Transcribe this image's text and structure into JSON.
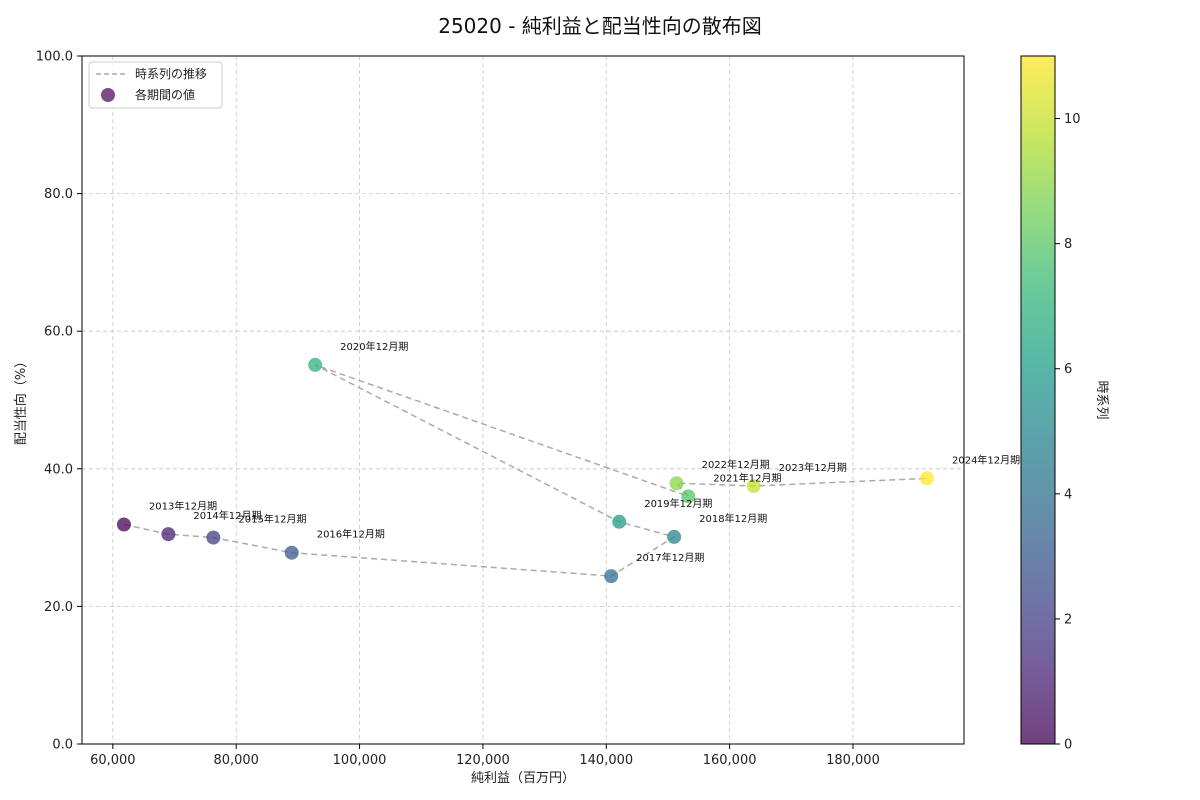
{
  "chart_data": {
    "type": "scatter",
    "title": "25020 - 純利益と配当性向の散布図",
    "xlabel": "純利益（百万円）",
    "ylabel": "配当性向（%）",
    "xlim": [
      55000,
      198000
    ],
    "ylim": [
      0,
      100
    ],
    "xticks": [
      60000,
      80000,
      100000,
      120000,
      140000,
      160000,
      180000
    ],
    "xtick_labels": [
      "60,000",
      "80,000",
      "100,000",
      "120,000",
      "140,000",
      "160,000",
      "180,000"
    ],
    "yticks": [
      0,
      20,
      40,
      60,
      80,
      100
    ],
    "ytick_labels": [
      "0.0",
      "20.0",
      "40.0",
      "60.0",
      "80.0",
      "100.0"
    ],
    "grid": true,
    "legend_position": "top-left",
    "legend": {
      "line": "時系列の推移",
      "points": "各期間の値"
    },
    "colorbar": {
      "label": "時系列",
      "range": [
        0,
        11
      ],
      "ticks": [
        0,
        2,
        4,
        6,
        8,
        10
      ],
      "tick_labels": [
        "0",
        "2",
        "4",
        "6",
        "8",
        "10"
      ],
      "colormap": "viridis"
    },
    "points": [
      {
        "label": "2013年12月期",
        "x": 61800,
        "y": 31.9,
        "t": 0
      },
      {
        "label": "2014年12月期",
        "x": 69000,
        "y": 30.5,
        "t": 1
      },
      {
        "label": "2015年12月期",
        "x": 76300,
        "y": 30.0,
        "t": 2
      },
      {
        "label": "2016年12月期",
        "x": 89000,
        "y": 27.8,
        "t": 3
      },
      {
        "label": "2017年12月期",
        "x": 140800,
        "y": 24.4,
        "t": 4
      },
      {
        "label": "2018年12月期",
        "x": 151000,
        "y": 30.1,
        "t": 5
      },
      {
        "label": "2019年12月期",
        "x": 142100,
        "y": 32.3,
        "t": 6
      },
      {
        "label": "2020年12月期",
        "x": 92800,
        "y": 55.1,
        "t": 7
      },
      {
        "label": "2021年12月期",
        "x": 153300,
        "y": 36.0,
        "t": 8
      },
      {
        "label": "2022年12月期",
        "x": 151400,
        "y": 37.9,
        "t": 9
      },
      {
        "label": "2023年12月期",
        "x": 163900,
        "y": 37.5,
        "t": 10
      },
      {
        "label": "2024年12月期",
        "x": 192000,
        "y": 38.6,
        "t": 11
      }
    ],
    "colors": {
      "line": "#aaaaaa",
      "grid": "#c8c8c8",
      "viridis": [
        "#440154",
        "#482878",
        "#3e4989",
        "#31688e",
        "#26828e",
        "#1f9e89",
        "#35b779",
        "#6ece58",
        "#b5de2b",
        "#fde725"
      ]
    }
  }
}
